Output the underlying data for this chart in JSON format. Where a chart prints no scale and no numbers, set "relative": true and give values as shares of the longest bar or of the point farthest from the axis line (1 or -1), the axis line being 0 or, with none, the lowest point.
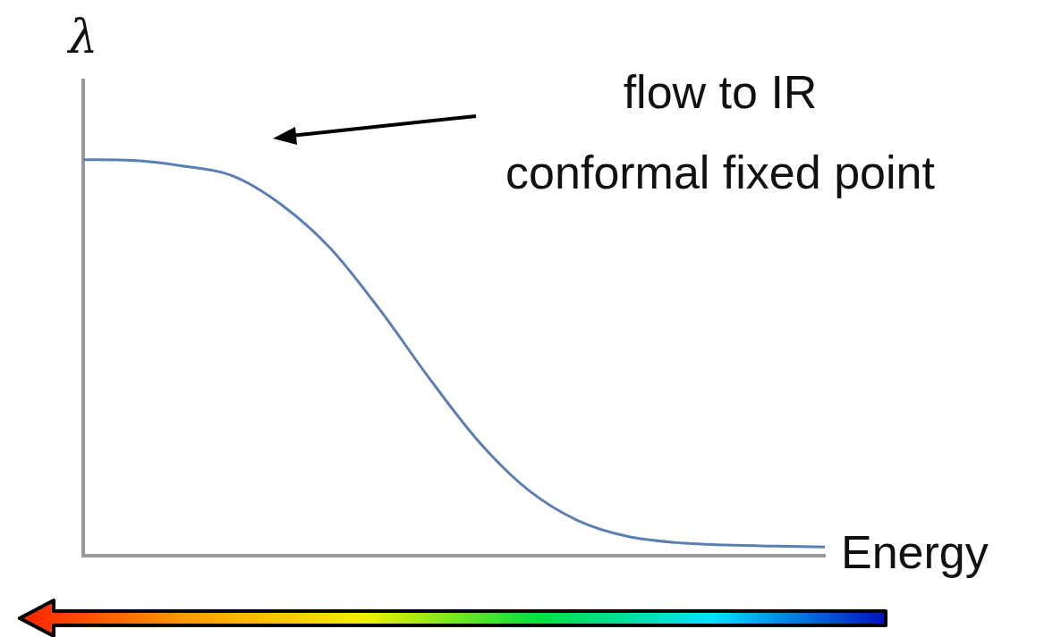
{
  "chart_data": {
    "type": "line",
    "relative": true,
    "ylabel": "λ",
    "xlabel": "Energy",
    "annotations": [
      "flow to IR",
      "conformal fixed point"
    ],
    "categories": [
      null,
      null,
      null,
      null,
      null,
      null,
      null,
      null,
      null,
      null,
      null,
      null,
      null,
      null,
      null,
      null
    ],
    "series": [
      {
        "color": "#5b7fb5",
        "values": [
          1,
          0.998,
          0.984,
          0.96,
          0.887,
          0.776,
          0.621,
          0.448,
          0.288,
          0.166,
          0.089,
          0.049,
          0.033,
          0.027,
          0.024,
          0.022
        ]
      }
    ],
    "grid": false,
    "legend": false,
    "marker": "none",
    "line_style": "solid"
  }
}
